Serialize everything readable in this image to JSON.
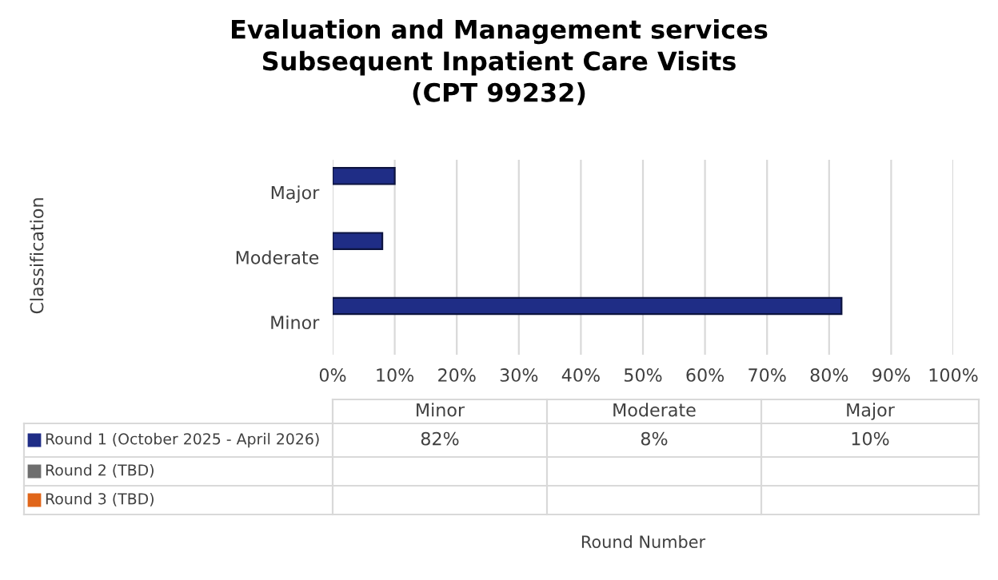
{
  "chart_data": {
    "type": "bar",
    "orientation": "horizontal",
    "title": "Evaluation and Management services\nSubsequent Inpatient Care Visits\n(CPT 99232)",
    "annotations": [
      "Classification",
      "Round Number",
      "82%",
      "8%",
      "10%"
    ],
    "categories": [
      "Major",
      "Moderate",
      "Minor"
    ],
    "series": [
      {
        "name": "Round 1 (October 2025 - April 2026)",
        "color": "#1f2d86",
        "values": [
          10,
          8,
          82
        ]
      },
      {
        "name": "Round 2 (TBD)",
        "color": "#6e6e6e",
        "values": [
          null,
          null,
          null
        ]
      },
      {
        "name": "Round 3 (TBD)",
        "color": "#e0661a",
        "values": [
          null,
          null,
          null
        ]
      }
    ],
    "xlim": [
      0,
      100
    ],
    "xticks": [
      {
        "value": 0,
        "label": "0%"
      },
      {
        "value": 10,
        "label": "10%"
      },
      {
        "value": 20,
        "label": "20%"
      },
      {
        "value": 30,
        "label": "30%"
      },
      {
        "value": 40,
        "label": "40%"
      },
      {
        "value": 50,
        "label": "50%"
      },
      {
        "value": 60,
        "label": "60%"
      },
      {
        "value": 70,
        "label": "70%"
      },
      {
        "value": 80,
        "label": "80%"
      },
      {
        "value": 90,
        "label": "90%"
      },
      {
        "value": 100,
        "label": "100%"
      }
    ],
    "grid": "x",
    "legend": "bottom"
  }
}
